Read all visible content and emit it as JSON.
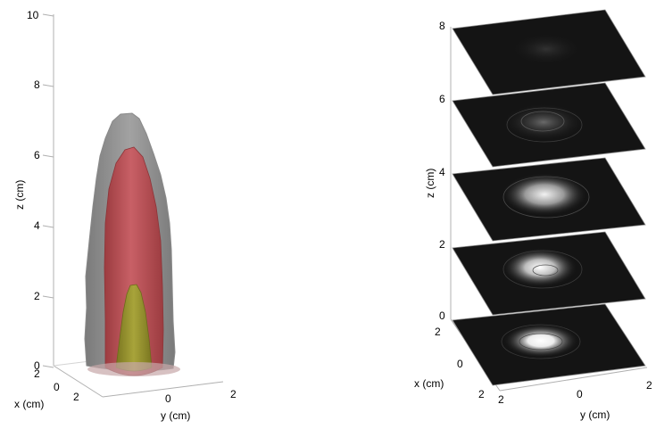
{
  "left_plot": {
    "z_axis": {
      "label": "z (cm)",
      "ticks": [
        "10",
        "8",
        "6",
        "4",
        "2",
        "0"
      ]
    },
    "x_axis": {
      "label": "x (cm)",
      "ticks": [
        "2",
        "0",
        "2"
      ]
    },
    "y_axis": {
      "label": "y (cm)",
      "ticks": [
        "0",
        "2"
      ]
    },
    "colors": {
      "outer_surface": "#8c8c8c",
      "middle_surface": "#b84a4e",
      "inner_surface": "#8e8a2c"
    }
  },
  "right_plot": {
    "z_axis": {
      "label": "z (cm)",
      "ticks": [
        "8",
        "6",
        "4",
        "2",
        "0"
      ]
    },
    "x_axis": {
      "label": "x (cm)",
      "ticks": [
        "2",
        "0",
        "2"
      ]
    },
    "y_axis": {
      "label": "y (cm)",
      "ticks": [
        "2",
        "0",
        "2"
      ]
    },
    "slice_levels_cm": [
      8,
      6,
      4,
      2,
      0
    ],
    "colors": {
      "slice_fill": "#141414",
      "hotspot": "#ffffff"
    }
  }
}
